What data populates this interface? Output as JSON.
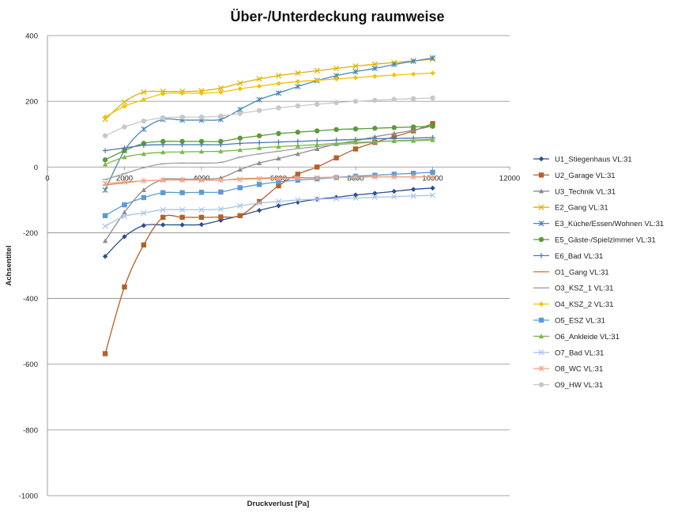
{
  "chart_data": {
    "type": "line",
    "title": "Über-/Unterdeckung raumweise",
    "xlabel": "Druckverlust  [Pa]",
    "ylabel": "Achsentitel",
    "xlim": [
      0,
      12000
    ],
    "ylim": [
      -1000,
      400
    ],
    "xticks": [
      "0",
      "2000",
      "4000",
      "6000",
      "8000",
      "10000",
      "12000"
    ],
    "yticks": [
      "400",
      "200",
      "0",
      "-200",
      "-400",
      "-600",
      "-800",
      "-1000"
    ],
    "grid": "horizontal",
    "legend_position": "right",
    "x": [
      1500,
      2000,
      2500,
      3000,
      3500,
      4000,
      4500,
      5000,
      5500,
      6000,
      6500,
      7000,
      7500,
      8000,
      8500,
      9000,
      9500,
      10000
    ],
    "series": [
      {
        "name": "U1_Stiegenhaus VL:31",
        "color": "#2e4d8f",
        "marker": "diamond",
        "values": [
          -272,
          -212,
          -178,
          -176,
          -176,
          -175,
          -162,
          -148,
          -132,
          -118,
          -107,
          -98,
          -92,
          -85,
          -80,
          -74,
          -68,
          -64
        ]
      },
      {
        "name": "U2_Garage VL:31",
        "color": "#b5602a",
        "marker": "square",
        "values": [
          -568,
          -365,
          -237,
          -153,
          -153,
          -153,
          -152,
          -148,
          -105,
          -57,
          -22,
          0,
          28,
          55,
          75,
          92,
          110,
          132
        ]
      },
      {
        "name": "U3_Technik VL:31",
        "color": "#8c8c8c",
        "marker": "triangle",
        "values": [
          -225,
          -138,
          -70,
          -38,
          -37,
          -37,
          -33,
          -8,
          12,
          26,
          40,
          55,
          70,
          80,
          92,
          102,
          112,
          125
        ]
      },
      {
        "name": "E2_Gang VL:31",
        "color": "#e0b000",
        "marker": "x",
        "values": [
          145,
          198,
          228,
          230,
          230,
          232,
          240,
          255,
          268,
          278,
          286,
          293,
          300,
          307,
          313,
          318,
          323,
          328
        ]
      },
      {
        "name": "E3_Küche/Essen/Wohnen VL:31",
        "color": "#4a87b8",
        "marker": "star",
        "values": [
          -70,
          50,
          115,
          145,
          143,
          143,
          145,
          175,
          205,
          225,
          245,
          263,
          278,
          290,
          300,
          312,
          322,
          332
        ]
      },
      {
        "name": "E5_Gäste-/Spielzimmer VL:31",
        "color": "#5a9a3a",
        "marker": "circle",
        "values": [
          22,
          50,
          72,
          78,
          78,
          78,
          78,
          88,
          95,
          102,
          106,
          110,
          114,
          116,
          118,
          120,
          122,
          124
        ]
      },
      {
        "name": "E6_Bad VL:31",
        "color": "#4a78b0",
        "marker": "plus",
        "values": [
          50,
          58,
          66,
          68,
          68,
          68,
          68,
          72,
          74,
          76,
          78,
          80,
          82,
          84,
          86,
          87,
          88,
          90
        ]
      },
      {
        "name": "O1_Gang VL:31",
        "color": "#e08030",
        "marker": "dash",
        "values": [
          -55,
          -48,
          -42,
          -40,
          -40,
          -40,
          -40,
          -36,
          -34,
          -32,
          -32,
          -32,
          -31,
          -30,
          -30,
          -30,
          -30,
          -30
        ]
      },
      {
        "name": "O3_KSZ_1 VL:31",
        "color": "#a0a0a0",
        "marker": "dash",
        "values": [
          -38,
          -20,
          -2,
          10,
          12,
          12,
          14,
          30,
          40,
          48,
          56,
          62,
          68,
          72,
          76,
          80,
          82,
          85
        ]
      },
      {
        "name": "O4_KSZ_2 VL:31",
        "color": "#f2c200",
        "marker": "diamond",
        "values": [
          152,
          185,
          205,
          223,
          225,
          225,
          228,
          238,
          246,
          254,
          260,
          264,
          268,
          272,
          276,
          280,
          283,
          286
        ]
      },
      {
        "name": "O5_ESZ VL:31",
        "color": "#5b9bd5",
        "marker": "square",
        "values": [
          -148,
          -115,
          -93,
          -78,
          -78,
          -77,
          -76,
          -63,
          -53,
          -45,
          -40,
          -36,
          -32,
          -28,
          -25,
          -22,
          -19,
          -16
        ]
      },
      {
        "name": "O6_Ankleide VL:31",
        "color": "#7ab848",
        "marker": "triangle",
        "values": [
          8,
          30,
          40,
          45,
          46,
          47,
          48,
          52,
          58,
          62,
          65,
          68,
          72,
          75,
          77,
          79,
          80,
          82
        ]
      },
      {
        "name": "O7_Bad VL:31",
        "color": "#a9c4e8",
        "marker": "x",
        "values": [
          -180,
          -150,
          -140,
          -130,
          -130,
          -130,
          -128,
          -118,
          -110,
          -105,
          -100,
          -98,
          -96,
          -94,
          -92,
          -90,
          -88,
          -86
        ]
      },
      {
        "name": "O8_WC VL:31",
        "color": "#f0a890",
        "marker": "star",
        "values": [
          -50,
          -45,
          -42,
          -40,
          -40,
          -40,
          -40,
          -38,
          -36,
          -35,
          -34,
          -33,
          -32,
          -31,
          -30,
          -30,
          -30,
          -30
        ]
      },
      {
        "name": "O9_HW VL:31",
        "color": "#c8c8c8",
        "marker": "circle",
        "values": [
          95,
          122,
          140,
          150,
          152,
          152,
          155,
          163,
          172,
          180,
          186,
          191,
          196,
          200,
          203,
          206,
          208,
          210
        ]
      }
    ]
  }
}
